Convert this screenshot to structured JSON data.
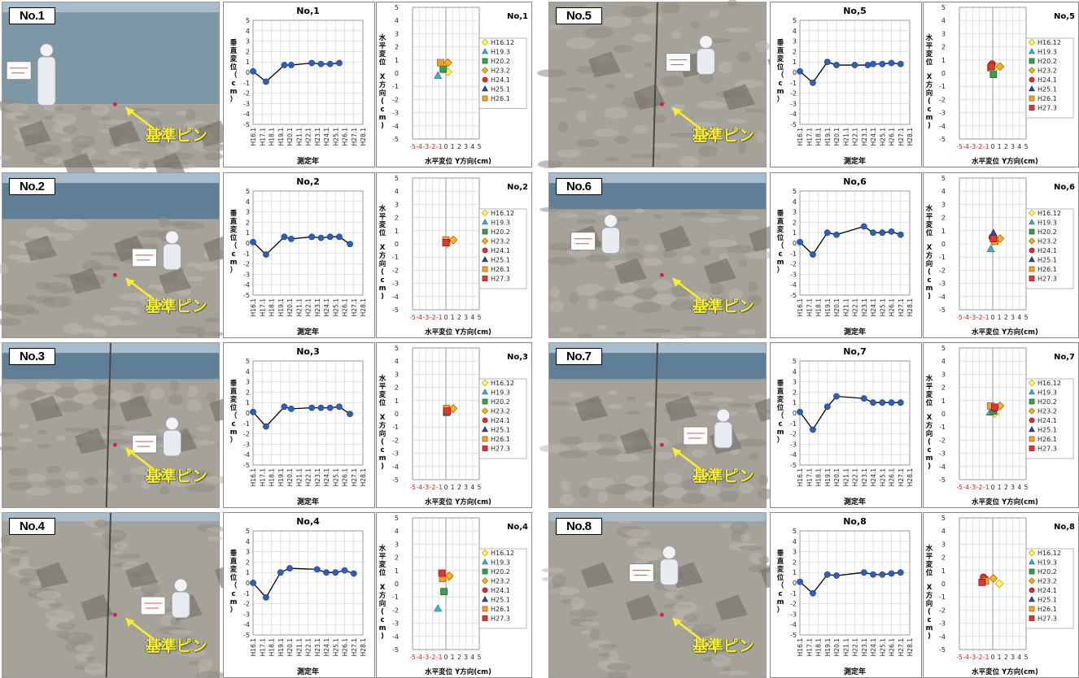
{
  "pin_label": "基準ピン",
  "colors": {
    "pin_text": "#f7ee2f",
    "arrow": "#f7ee2f",
    "vertical_line": "#000000",
    "vertical_marker": "#2f5eb8",
    "axis_red": "#ff0000"
  },
  "markers": [
    {
      "label": "H16.12",
      "shape": "diamond",
      "fill": "#ffff66",
      "stroke": "#c8a000"
    },
    {
      "label": "H19.3",
      "shape": "triangle",
      "fill": "#4aacc6",
      "stroke": "#2a7c96"
    },
    {
      "label": "H20.2",
      "shape": "square",
      "fill": "#3aa04a",
      "stroke": "#236a30"
    },
    {
      "label": "H23.2",
      "shape": "diamond",
      "fill": "#f7b02b",
      "stroke": "#a86a00"
    },
    {
      "label": "H24.1",
      "shape": "circle",
      "fill": "#e03030",
      "stroke": "#901010"
    },
    {
      "label": "H25.1",
      "shape": "triangle",
      "fill": "#3a4a9a",
      "stroke": "#1a2a6a"
    },
    {
      "label": "H26.1",
      "shape": "square",
      "fill": "#f7a030",
      "stroke": "#a86000"
    },
    {
      "label": "H27.3",
      "shape": "square",
      "fill": "#e03838",
      "stroke": "#901818"
    }
  ],
  "chart_data": [
    {
      "id": "No,1",
      "photo_label": "No.1",
      "vertical": {
        "type": "line",
        "title": "No,1",
        "xlabel": "測定年",
        "ylabel": "垂直変位（cm）",
        "ylim": [
          -5,
          5
        ],
        "grid": true,
        "x": [
          "H16.1",
          "H17.1",
          "H18.1",
          "H19.1",
          "H20.1",
          "H21.1",
          "H22.1",
          "H23.1",
          "H24.1",
          "H25.1",
          "H26.1",
          "H27.1",
          "H28.1"
        ],
        "points": [
          [
            "H16.1",
            0.1
          ],
          [
            "H17.6",
            -0.9
          ],
          [
            "H19.6",
            0.7
          ],
          [
            "H20.3",
            0.7
          ],
          [
            "H22.6",
            0.9
          ],
          [
            "H23.6",
            0.8
          ],
          [
            "H24.6",
            0.8
          ],
          [
            "H25.6",
            0.9
          ]
        ]
      },
      "horizontal": {
        "type": "scatter",
        "title": "No,1",
        "xlabel": "水平変位 Y方向(cm)",
        "ylabel": "水平変位 X方向(cm)",
        "xlim": [
          -5,
          5
        ],
        "ylim": [
          -5,
          5
        ],
        "grid": true,
        "legend_position": "right",
        "points": [
          {
            "series": "H16.12",
            "x": 0.3,
            "y": 0.1
          },
          {
            "series": "H19.3",
            "x": -1.2,
            "y": -0.2
          },
          {
            "series": "H20.2",
            "x": -0.4,
            "y": 0.3
          },
          {
            "series": "H23.2",
            "x": 0.3,
            "y": 0.8
          },
          {
            "series": "H26.1",
            "x": -0.8,
            "y": 0.8
          }
        ]
      }
    },
    {
      "id": "No,2",
      "photo_label": "No.2",
      "vertical": {
        "type": "line",
        "title": "No,2",
        "xlabel": "測定年",
        "ylabel": "垂直変位（cm）",
        "ylim": [
          -5,
          5
        ],
        "grid": true,
        "x": [
          "H16.1",
          "H17.1",
          "H18.1",
          "H19.1",
          "H20.1",
          "H21.1",
          "H22.1",
          "H23.1",
          "H24.1",
          "H25.1",
          "H26.1",
          "H27.1",
          "H28.1"
        ],
        "points": [
          [
            "H16.1",
            0.1
          ],
          [
            "H17.6",
            -1.1
          ],
          [
            "H19.6",
            0.6
          ],
          [
            "H20.3",
            0.4
          ],
          [
            "H22.6",
            0.6
          ],
          [
            "H23.6",
            0.5
          ],
          [
            "H24.6",
            0.6
          ],
          [
            "H25.6",
            0.6
          ],
          [
            "H26.8",
            -0.1
          ]
        ]
      },
      "horizontal": {
        "type": "scatter",
        "title": "No,2",
        "xlabel": "水平変位 Y方向(cm)",
        "ylabel": "水平変位 X方向(cm)",
        "xlim": [
          -5,
          5
        ],
        "ylim": [
          -5,
          5
        ],
        "grid": true,
        "legend_position": "right",
        "points": [
          {
            "series": "H16.12",
            "x": 0.2,
            "y": 0.0
          },
          {
            "series": "H20.2",
            "x": 0.0,
            "y": 0.1
          },
          {
            "series": "H23.2",
            "x": 1.1,
            "y": 0.3
          },
          {
            "series": "H24.1",
            "x": 0.1,
            "y": 0.2
          },
          {
            "series": "H26.1",
            "x": 0.0,
            "y": 0.3
          },
          {
            "series": "H27.3",
            "x": 0.0,
            "y": 0.1
          }
        ]
      }
    },
    {
      "id": "No,3",
      "photo_label": "No.3",
      "vertical": {
        "type": "line",
        "title": "No,3",
        "xlabel": "測定年",
        "ylabel": "垂直変位（cm）",
        "ylim": [
          -5,
          5
        ],
        "grid": true,
        "x": [
          "H16.1",
          "H17.1",
          "H18.1",
          "H19.1",
          "H20.1",
          "H21.1",
          "H22.1",
          "H23.1",
          "H24.1",
          "H25.1",
          "H26.1",
          "H27.1",
          "H28.1"
        ],
        "points": [
          [
            "H16.1",
            0.1
          ],
          [
            "H17.6",
            -1.3
          ],
          [
            "H19.6",
            0.6
          ],
          [
            "H20.3",
            0.4
          ],
          [
            "H22.6",
            0.5
          ],
          [
            "H23.6",
            0.5
          ],
          [
            "H24.6",
            0.5
          ],
          [
            "H25.6",
            0.6
          ],
          [
            "H26.8",
            -0.1
          ]
        ]
      },
      "horizontal": {
        "type": "scatter",
        "title": "No,3",
        "xlabel": "水平変位 Y方向(cm)",
        "ylabel": "水平変位 X方向(cm)",
        "xlim": [
          -5,
          5
        ],
        "ylim": [
          -5,
          5
        ],
        "grid": true,
        "legend_position": "right",
        "points": [
          {
            "series": "H16.12",
            "x": 0.3,
            "y": 0.2
          },
          {
            "series": "H20.2",
            "x": 0.1,
            "y": 0.1
          },
          {
            "series": "H23.2",
            "x": 1.1,
            "y": 0.4
          },
          {
            "series": "H24.1",
            "x": 0.1,
            "y": 0.3
          },
          {
            "series": "H26.1",
            "x": 0.1,
            "y": 0.4
          },
          {
            "series": "H27.3",
            "x": 0.2,
            "y": 0.2
          }
        ]
      }
    },
    {
      "id": "No,4",
      "photo_label": "No.4",
      "vertical": {
        "type": "line",
        "title": "No,4",
        "xlabel": "測定年",
        "ylabel": "垂直変位（cm）",
        "ylim": [
          -5,
          5
        ],
        "grid": true,
        "x": [
          "H16.1",
          "H17.1",
          "H18.1",
          "H19.1",
          "H20.1",
          "H21.1",
          "H22.1",
          "H23.1",
          "H24.1",
          "H25.1",
          "H26.1",
          "H27.1",
          "H28.1"
        ],
        "points": [
          [
            "H16.1",
            0.0
          ],
          [
            "H17.6",
            -1.4
          ],
          [
            "H19.1",
            1.0
          ],
          [
            "H20.1",
            1.4
          ],
          [
            "H23.1",
            1.3
          ],
          [
            "H24.1",
            1.0
          ],
          [
            "H25.1",
            1.0
          ],
          [
            "H26.1",
            1.2
          ],
          [
            "H27.1",
            0.9
          ]
        ]
      },
      "horizontal": {
        "type": "scatter",
        "title": "No,4",
        "xlabel": "水平変位 Y方向(cm)",
        "ylabel": "水平変位 X方向(cm)",
        "xlim": [
          -5,
          5
        ],
        "ylim": [
          -5,
          5
        ],
        "grid": true,
        "legend_position": "right",
        "points": [
          {
            "series": "H16.12",
            "x": 0.4,
            "y": 0.5
          },
          {
            "series": "H19.3",
            "x": -1.2,
            "y": -1.9
          },
          {
            "series": "H20.2",
            "x": -0.3,
            "y": -0.6
          },
          {
            "series": "H23.2",
            "x": 0.5,
            "y": 0.6
          },
          {
            "series": "H24.1",
            "x": -0.6,
            "y": 0.8
          },
          {
            "series": "H26.1",
            "x": -0.5,
            "y": 0.4
          },
          {
            "series": "H27.3",
            "x": -0.6,
            "y": 0.8
          }
        ]
      }
    },
    {
      "id": "No,5",
      "photo_label": "No.5",
      "vertical": {
        "type": "line",
        "title": "No,5",
        "xlabel": "測定年",
        "ylabel": "垂直変位（cm）",
        "ylim": [
          -5,
          5
        ],
        "grid": true,
        "x": [
          "H16.1",
          "H17.1",
          "H18.1",
          "H19.1",
          "H20.1",
          "H21.1",
          "H22.1",
          "H23.1",
          "H24.1",
          "H25.1",
          "H26.1",
          "H27.1",
          "H28.1"
        ],
        "points": [
          [
            "H16.1",
            0.1
          ],
          [
            "H17.6",
            -1.0
          ],
          [
            "H19.1",
            1.0
          ],
          [
            "H20.1",
            0.7
          ],
          [
            "H22.1",
            0.7
          ],
          [
            "H23.6",
            0.7
          ],
          [
            "H24.1",
            0.8
          ],
          [
            "H25.1",
            0.8
          ],
          [
            "H26.1",
            0.9
          ],
          [
            "H27.1",
            0.8
          ]
        ]
      },
      "horizontal": {
        "type": "scatter",
        "title": "No,5",
        "xlabel": "水平変位 Y方向(cm)",
        "ylabel": "水平変位 X方向(cm)",
        "xlim": [
          -5,
          5
        ],
        "ylim": [
          -5,
          5
        ],
        "grid": true,
        "legend_position": "right",
        "points": [
          {
            "series": "H16.12",
            "x": 0.6,
            "y": 0.5
          },
          {
            "series": "H20.2",
            "x": 0.1,
            "y": -0.1
          },
          {
            "series": "H23.2",
            "x": 1.1,
            "y": 0.5
          },
          {
            "series": "H24.1",
            "x": -0.1,
            "y": 0.7
          },
          {
            "series": "H26.1",
            "x": -0.3,
            "y": 0.4
          },
          {
            "series": "H27.3",
            "x": -0.2,
            "y": 0.5
          }
        ]
      }
    },
    {
      "id": "No,6",
      "photo_label": "No.6",
      "vertical": {
        "type": "line",
        "title": "No,6",
        "xlabel": "測定年",
        "ylabel": "垂直変位（cm）",
        "ylim": [
          -5,
          5
        ],
        "grid": true,
        "x": [
          "H16.1",
          "H17.1",
          "H18.1",
          "H19.1",
          "H20.1",
          "H21.1",
          "H22.1",
          "H23.1",
          "H24.1",
          "H25.1",
          "H26.1",
          "H27.1",
          "H28.1"
        ],
        "points": [
          [
            "H16.1",
            0.1
          ],
          [
            "H17.6",
            -1.1
          ],
          [
            "H19.1",
            1.0
          ],
          [
            "H20.1",
            0.8
          ],
          [
            "H23.1",
            1.6
          ],
          [
            "H24.1",
            1.0
          ],
          [
            "H25.1",
            1.0
          ],
          [
            "H26.1",
            1.1
          ],
          [
            "H27.1",
            0.8
          ]
        ]
      },
      "horizontal": {
        "type": "scatter",
        "title": "No,6",
        "xlabel": "水平変位 Y方向(cm)",
        "ylabel": "水平変位 X方向(cm)",
        "xlim": [
          -5,
          5
        ],
        "ylim": [
          -5,
          5
        ],
        "grid": true,
        "legend_position": "right",
        "points": [
          {
            "series": "H16.12",
            "x": 0.5,
            "y": 0.3
          },
          {
            "series": "H19.3",
            "x": -0.3,
            "y": -0.4
          },
          {
            "series": "H20.2",
            "x": 0.3,
            "y": 0.2
          },
          {
            "series": "H23.2",
            "x": 1.1,
            "y": 0.4
          },
          {
            "series": "H24.1",
            "x": -0.1,
            "y": 0.5
          },
          {
            "series": "H25.1",
            "x": 0.1,
            "y": 0.8
          },
          {
            "series": "H26.1",
            "x": 0.3,
            "y": 0.2
          },
          {
            "series": "H27.3",
            "x": 0.1,
            "y": 0.4
          }
        ]
      }
    },
    {
      "id": "No,7",
      "photo_label": "No.7",
      "vertical": {
        "type": "line",
        "title": "No,7",
        "xlabel": "測定年",
        "ylabel": "垂直変位（cm）",
        "ylim": [
          -5,
          5
        ],
        "grid": true,
        "x": [
          "H16.1",
          "H17.1",
          "H18.1",
          "H19.1",
          "H20.1",
          "H21.1",
          "H22.1",
          "H23.1",
          "H24.1",
          "H25.1",
          "H26.1",
          "H27.1",
          "H28.1"
        ],
        "points": [
          [
            "H16.1",
            0.1
          ],
          [
            "H17.6",
            -1.6
          ],
          [
            "H19.1",
            0.6
          ],
          [
            "H20.1",
            1.6
          ],
          [
            "H23.1",
            1.4
          ],
          [
            "H24.1",
            1.0
          ],
          [
            "H25.1",
            1.0
          ],
          [
            "H26.1",
            1.0
          ],
          [
            "H27.1",
            1.0
          ]
        ]
      },
      "horizontal": {
        "type": "scatter",
        "title": "No,7",
        "xlabel": "水平変位 Y方向(cm)",
        "ylabel": "水平変位 X方向(cm)",
        "xlim": [
          -5,
          5
        ],
        "ylim": [
          -5,
          5
        ],
        "grid": true,
        "legend_position": "right",
        "points": [
          {
            "series": "H16.12",
            "x": 0.3,
            "y": 0.0
          },
          {
            "series": "H19.3",
            "x": -0.4,
            "y": 0.1
          },
          {
            "series": "H20.2",
            "x": 0.1,
            "y": 0.2
          },
          {
            "series": "H23.2",
            "x": 1.1,
            "y": 0.6
          },
          {
            "series": "H24.1",
            "x": 0.3,
            "y": 0.4
          },
          {
            "series": "H26.1",
            "x": -0.3,
            "y": 0.6
          },
          {
            "series": "H27.3",
            "x": 0.3,
            "y": 0.5
          }
        ]
      }
    },
    {
      "id": "No,8",
      "photo_label": "No.8",
      "vertical": {
        "type": "line",
        "title": "No,8",
        "xlabel": "測定年",
        "ylabel": "垂直変位（cm）",
        "ylim": [
          -5,
          5
        ],
        "grid": true,
        "x": [
          "H16.1",
          "H17.1",
          "H18.1",
          "H19.1",
          "H20.1",
          "H21.1",
          "H22.1",
          "H23.1",
          "H24.1",
          "H25.1",
          "H26.1",
          "H27.1",
          "H28.1"
        ],
        "points": [
          [
            "H16.1",
            0.1
          ],
          [
            "H17.6",
            -1.0
          ],
          [
            "H19.1",
            0.8
          ],
          [
            "H20.1",
            0.7
          ],
          [
            "H23.1",
            1.0
          ],
          [
            "H24.1",
            0.8
          ],
          [
            "H25.1",
            0.8
          ],
          [
            "H26.1",
            0.9
          ],
          [
            "H27.1",
            1.0
          ]
        ]
      },
      "horizontal": {
        "type": "scatter",
        "title": "No,8",
        "xlabel": "水平変位 Y方向(cm)",
        "ylabel": "水平変位 X方向(cm)",
        "xlim": [
          -5,
          5
        ],
        "ylim": [
          -5,
          5
        ],
        "grid": true,
        "legend_position": "right",
        "points": [
          {
            "series": "H16.12",
            "x": 1.0,
            "y": 0.0
          },
          {
            "series": "H20.2",
            "x": -1.2,
            "y": 0.3
          },
          {
            "series": "H23.2",
            "x": 0.1,
            "y": 0.4
          },
          {
            "series": "H24.1",
            "x": -1.4,
            "y": 0.5
          },
          {
            "series": "H26.1",
            "x": -1.1,
            "y": 0.2
          },
          {
            "series": "H27.3",
            "x": -1.6,
            "y": 0.1
          }
        ]
      }
    }
  ]
}
